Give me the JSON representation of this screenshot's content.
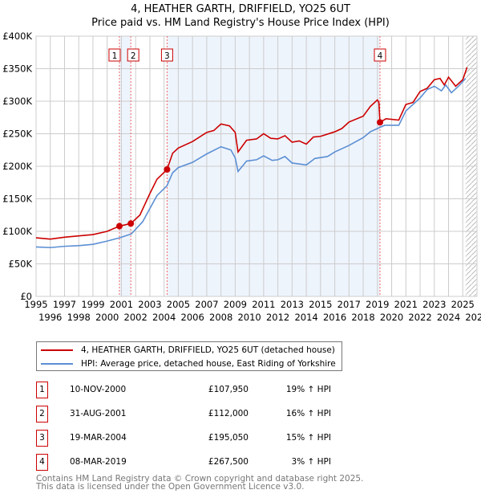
{
  "chart_data": {
    "type": "line",
    "title": "4, HEATHER GARTH, DRIFFIELD, YO25 6UT",
    "subtitle": "Price paid vs. HM Land Registry's House Price Index (HPI)",
    "xlim": [
      1995,
      2026
    ],
    "ylim": [
      0,
      400000
    ],
    "x_ticks": [
      "1995",
      "1996",
      "1997",
      "1998",
      "1999",
      "2000",
      "2001",
      "2002",
      "2003",
      "2004",
      "2005",
      "2006",
      "2007",
      "2008",
      "2009",
      "2010",
      "2011",
      "2012",
      "2013",
      "2014",
      "2015",
      "2016",
      "2017",
      "2018",
      "2019",
      "2020",
      "2021",
      "2022",
      "2023",
      "2024",
      "2025",
      "2026"
    ],
    "y_ticks": [
      {
        "v": 0,
        "l": "£0"
      },
      {
        "v": 50000,
        "l": "£50K"
      },
      {
        "v": 100000,
        "l": "£100K"
      },
      {
        "v": 150000,
        "l": "£150K"
      },
      {
        "v": 200000,
        "l": "£200K"
      },
      {
        "v": 250000,
        "l": "£250K"
      },
      {
        "v": 300000,
        "l": "£300K"
      },
      {
        "v": 350000,
        "l": "£350K"
      },
      {
        "v": 400000,
        "l": "£400K"
      }
    ],
    "series": [
      {
        "name": "4, HEATHER GARTH, DRIFFIELD, YO25 6UT (detached house)",
        "color": "#cc0000",
        "points": [
          [
            1995,
            90
          ],
          [
            1996,
            88
          ],
          [
            1997,
            91
          ],
          [
            1998,
            93
          ],
          [
            1999,
            95
          ],
          [
            2000,
            100
          ],
          [
            2000.86,
            107.95
          ],
          [
            2001.66,
            112
          ],
          [
            2002.3,
            125
          ],
          [
            2003,
            158
          ],
          [
            2003.5,
            180
          ],
          [
            2004.21,
            195.05
          ],
          [
            2004.6,
            220
          ],
          [
            2005,
            228
          ],
          [
            2006,
            238
          ],
          [
            2007,
            252
          ],
          [
            2007.5,
            255
          ],
          [
            2008,
            265
          ],
          [
            2008.6,
            262
          ],
          [
            2009,
            252
          ],
          [
            2009.2,
            222
          ],
          [
            2009.8,
            240
          ],
          [
            2010.5,
            242
          ],
          [
            2011,
            250
          ],
          [
            2011.5,
            243
          ],
          [
            2012,
            242
          ],
          [
            2012.5,
            247
          ],
          [
            2013,
            237
          ],
          [
            2013.5,
            239
          ],
          [
            2014,
            234
          ],
          [
            2014.5,
            245
          ],
          [
            2015,
            246
          ],
          [
            2016,
            253
          ],
          [
            2016.5,
            258
          ],
          [
            2017,
            268
          ],
          [
            2018,
            277
          ],
          [
            2018.5,
            292
          ],
          [
            2019,
            302
          ],
          [
            2019.1,
            298
          ],
          [
            2019.18,
            267.5
          ],
          [
            2019.6,
            273
          ],
          [
            2020.5,
            271
          ],
          [
            2021,
            295
          ],
          [
            2021.5,
            298
          ],
          [
            2022,
            315
          ],
          [
            2022.5,
            320
          ],
          [
            2023,
            333
          ],
          [
            2023.4,
            335
          ],
          [
            2023.7,
            325
          ],
          [
            2024,
            337
          ],
          [
            2024.5,
            323
          ],
          [
            2025,
            333
          ],
          [
            2025.3,
            352
          ]
        ]
      },
      {
        "name": "HPI: Average price, detached house, East Riding of Yorkshire",
        "color": "#5b8fd4",
        "points": [
          [
            1995,
            76
          ],
          [
            1996,
            75
          ],
          [
            1997,
            77
          ],
          [
            1998,
            78
          ],
          [
            1999,
            80
          ],
          [
            2000,
            85
          ],
          [
            2000.86,
            90
          ],
          [
            2001.7,
            96
          ],
          [
            2002.5,
            115
          ],
          [
            2003,
            135
          ],
          [
            2003.5,
            155
          ],
          [
            2004.2,
            170
          ],
          [
            2004.6,
            190
          ],
          [
            2005,
            198
          ],
          [
            2006,
            206
          ],
          [
            2007,
            219
          ],
          [
            2008,
            230
          ],
          [
            2008.7,
            225
          ],
          [
            2009,
            213
          ],
          [
            2009.2,
            192
          ],
          [
            2009.8,
            208
          ],
          [
            2010.5,
            210
          ],
          [
            2011,
            216
          ],
          [
            2011.6,
            209
          ],
          [
            2012,
            210
          ],
          [
            2012.5,
            215
          ],
          [
            2013,
            205
          ],
          [
            2014,
            202
          ],
          [
            2014.6,
            212
          ],
          [
            2015.5,
            215
          ],
          [
            2016,
            222
          ],
          [
            2017,
            232
          ],
          [
            2018,
            244
          ],
          [
            2018.5,
            253
          ],
          [
            2019,
            258
          ],
          [
            2019.5,
            263
          ],
          [
            2020.5,
            263
          ],
          [
            2021,
            285
          ],
          [
            2022,
            305
          ],
          [
            2022.5,
            318
          ],
          [
            2023,
            323
          ],
          [
            2023.5,
            316
          ],
          [
            2023.8,
            325
          ],
          [
            2024.2,
            313
          ],
          [
            2024.7,
            323
          ],
          [
            2025.2,
            335
          ]
        ]
      }
    ],
    "sales": [
      {
        "n": "1",
        "date": "10-NOV-2000",
        "x": 2000.86,
        "price_value": 107950,
        "price": "£107,950",
        "hpi": "19% ↑ HPI"
      },
      {
        "n": "2",
        "date": "31-AUG-2001",
        "x": 2001.66,
        "price_value": 112000,
        "price": "£112,000",
        "hpi": "16% ↑ HPI"
      },
      {
        "n": "3",
        "date": "19-MAR-2004",
        "x": 2004.21,
        "price_value": 195050,
        "price": "£195,050",
        "hpi": "15% ↑ HPI"
      },
      {
        "n": "4",
        "date": "08-MAR-2019",
        "x": 2019.18,
        "price_value": 267500,
        "price": "£267,500",
        "hpi": "3% ↑ HPI"
      }
    ],
    "forecast_start": 2025.2
  },
  "footer": {
    "line1": "Contains HM Land Registry data © Crown copyright and database right 2025.",
    "line2": "This data is licensed under the Open Government Licence v3.0."
  }
}
